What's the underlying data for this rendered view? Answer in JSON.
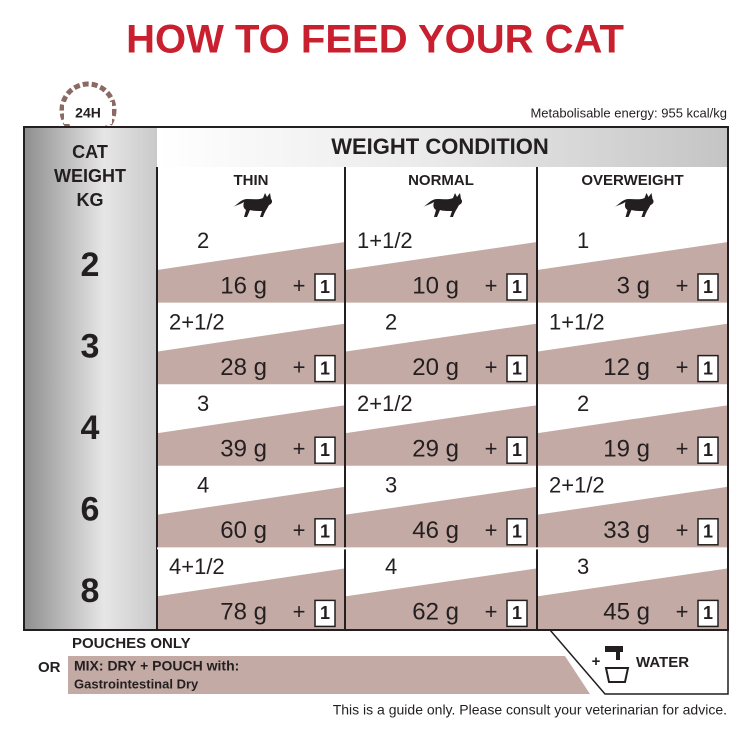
{
  "header": {
    "title": "HOW TO FEED YOUR CAT",
    "clock": "24H",
    "energy": "Metabolisable energy: 955 kcal/kg"
  },
  "table": {
    "corner": [
      "CAT",
      "WEIGHT",
      "KG"
    ],
    "group": "WEIGHT CONDITION",
    "columns": [
      "THIN",
      "NORMAL",
      "OVERWEIGHT"
    ],
    "plus": "+",
    "pouch": "1",
    "rows": [
      {
        "weight": "2",
        "cells": [
          [
            "2",
            "16 g"
          ],
          [
            "1+1/2",
            "10 g"
          ],
          [
            "1",
            "3 g"
          ]
        ]
      },
      {
        "weight": "3",
        "cells": [
          [
            "2+1/2",
            "28 g"
          ],
          [
            "2",
            "20 g"
          ],
          [
            "1+1/2",
            "12 g"
          ]
        ]
      },
      {
        "weight": "4",
        "cells": [
          [
            "3",
            "39 g"
          ],
          [
            "2+1/2",
            "29 g"
          ],
          [
            "2",
            "19 g"
          ]
        ]
      },
      {
        "weight": "6",
        "cells": [
          [
            "4",
            "60 g"
          ],
          [
            "3",
            "46 g"
          ],
          [
            "2+1/2",
            "33 g"
          ]
        ]
      },
      {
        "weight": "8",
        "cells": [
          [
            "4+1/2",
            "78 g"
          ],
          [
            "4",
            "62 g"
          ],
          [
            "3",
            "45 g"
          ]
        ]
      }
    ]
  },
  "footer": {
    "or": "OR",
    "pouches_only": "POUCHES ONLY",
    "mix": "MIX: DRY + POUCH with:",
    "product": "Gastrointestinal Dry",
    "plus": "+",
    "water": "WATER",
    "note": "This is a guide only. Please consult your veterinarian for advice."
  }
}
